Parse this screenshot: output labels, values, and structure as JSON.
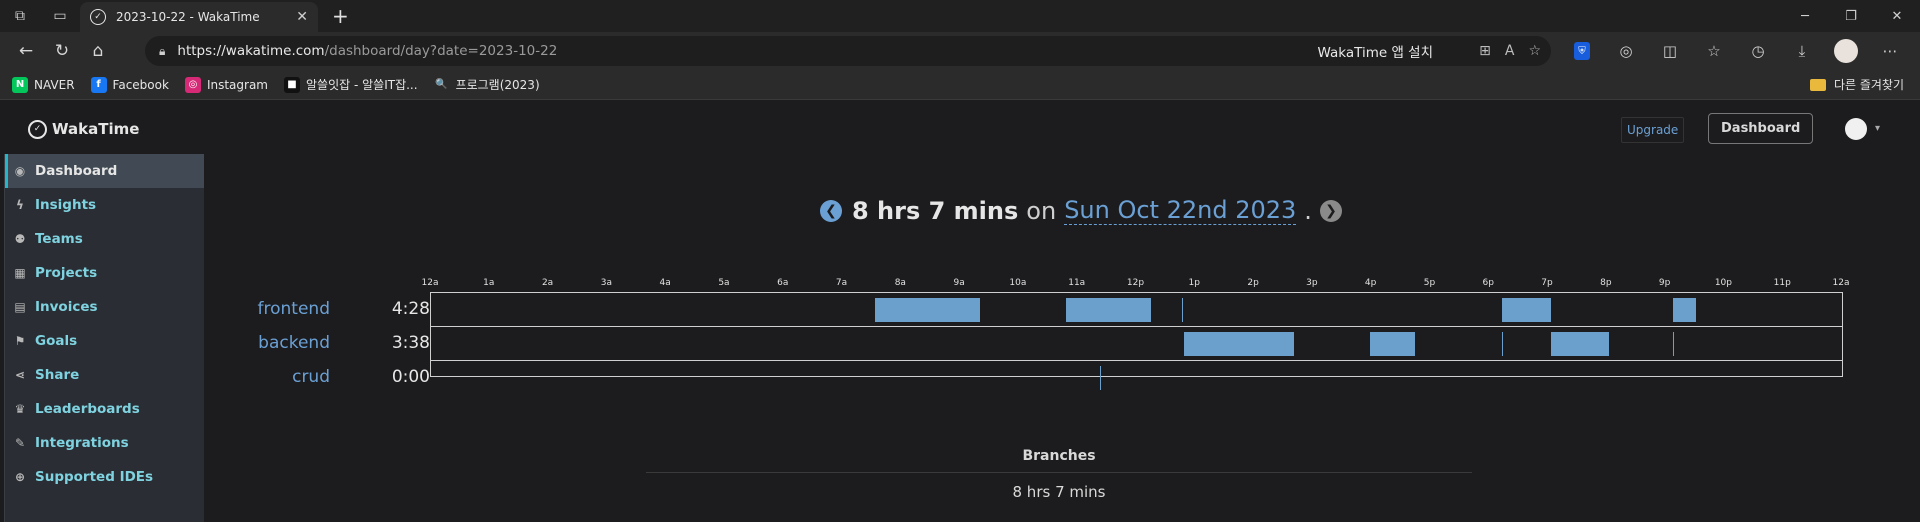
{
  "browser": {
    "tab_title": "2023-10-22 - WakaTime",
    "url_host": "https://wakatime.com",
    "url_path": "/dashboard/day?date=2023-10-22",
    "install_label": "WakaTime 앱 설치",
    "bookmarks": [
      {
        "label": "NAVER",
        "icon": "naver-icon",
        "color": "#03c75a",
        "glyph": "N"
      },
      {
        "label": "Facebook",
        "icon": "facebook-icon",
        "color": "#1877f2",
        "glyph": "f"
      },
      {
        "label": "Instagram",
        "icon": "instagram-icon",
        "color": "#d62976",
        "glyph": "◎"
      },
      {
        "label": "알쓸잇잡 - 알쓸IT잡...",
        "icon": "site-icon",
        "color": "#111111",
        "glyph": "■"
      },
      {
        "label": "프로그램(2023)",
        "icon": "search-icon",
        "color": "#2b2b2b",
        "glyph": "🔍"
      }
    ],
    "other_bookmarks": "다른 즐겨찾기"
  },
  "app": {
    "logo": "WakaTime",
    "upgrade": "Upgrade",
    "dashboard_button": "Dashboard"
  },
  "sidebar": {
    "items": [
      {
        "label": "Dashboard",
        "icon": "dashboard-icon",
        "glyph": "◉",
        "active": true
      },
      {
        "label": "Insights",
        "icon": "bolt-icon",
        "glyph": "ϟ"
      },
      {
        "label": "Teams",
        "icon": "users-icon",
        "glyph": "⚉"
      },
      {
        "label": "Projects",
        "icon": "grid-icon",
        "glyph": "▦"
      },
      {
        "label": "Invoices",
        "icon": "document-icon",
        "glyph": "▤"
      },
      {
        "label": "Goals",
        "icon": "flag-icon",
        "glyph": "⚑"
      },
      {
        "label": "Share",
        "icon": "share-icon",
        "glyph": "⋖"
      },
      {
        "label": "Leaderboards",
        "icon": "trophy-icon",
        "glyph": "♛"
      },
      {
        "label": "Integrations",
        "icon": "wrench-icon",
        "glyph": "✎"
      },
      {
        "label": "Supported IDEs",
        "icon": "plus-circle-icon",
        "glyph": "⊕"
      }
    ]
  },
  "day": {
    "total": "8 hrs 7 mins",
    "on": "on",
    "date": "Sun Oct 22nd 2023",
    "dot": "."
  },
  "chart_data": {
    "type": "timeline",
    "x_ticks": [
      "12a",
      "1a",
      "2a",
      "3a",
      "4a",
      "5a",
      "6a",
      "7a",
      "8a",
      "9a",
      "10a",
      "11a",
      "12p",
      "1p",
      "2p",
      "3p",
      "4p",
      "5p",
      "6p",
      "7p",
      "8p",
      "9p",
      "10p",
      "11p",
      "12a"
    ],
    "xlim_hours": [
      0,
      24
    ],
    "projects": [
      {
        "name": "frontend",
        "total": "4:28",
        "segments": [
          [
            7.55,
            9.33
          ],
          [
            10.8,
            11.4
          ],
          [
            11.4,
            12.25
          ],
          [
            12.78,
            12.8
          ],
          [
            18.22,
            19.05
          ],
          [
            21.12,
            21.52
          ]
        ]
      },
      {
        "name": "backend",
        "total": "3:38",
        "segments": [
          [
            12.8,
            14.68
          ],
          [
            15.97,
            16.73
          ],
          [
            18.22,
            18.24
          ],
          [
            19.05,
            20.03
          ],
          [
            21.12,
            21.14
          ]
        ]
      },
      {
        "name": "crud",
        "total": "0:00",
        "segments": [
          [
            11.38,
            11.4
          ]
        ]
      }
    ],
    "color": "#6ba0cc"
  },
  "branches": {
    "heading": "Branches",
    "value": "8 hrs 7 mins"
  }
}
